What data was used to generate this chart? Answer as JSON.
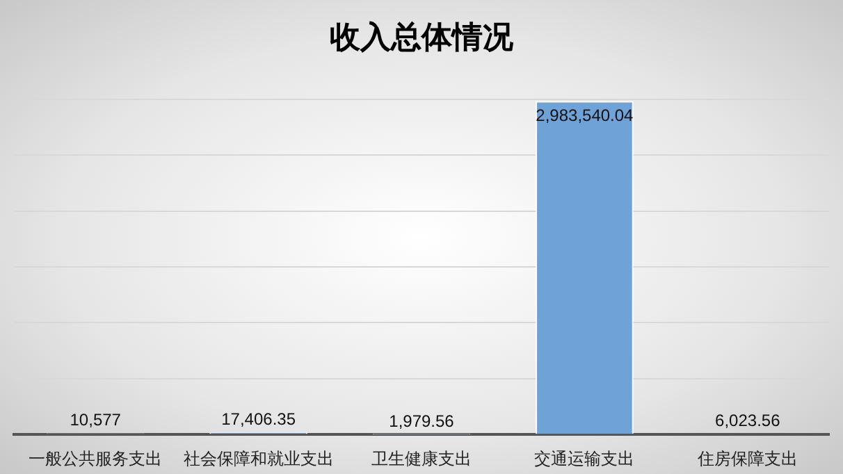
{
  "chart_data": {
    "type": "bar",
    "title": "收入总体情况",
    "categories": [
      "一般公共服务支出",
      "社会保障和就业支出",
      "卫生健康支出",
      "交通运输支出",
      "住房保障支出"
    ],
    "values": [
      10577,
      17406.35,
      1979.56,
      2983540.04,
      6023.56
    ],
    "value_labels": [
      "10,577",
      "17,406.35",
      "1,979.56",
      "2,983,540.04",
      "6,023.56"
    ],
    "color": "#6fa3d8",
    "grid": "y"
  }
}
